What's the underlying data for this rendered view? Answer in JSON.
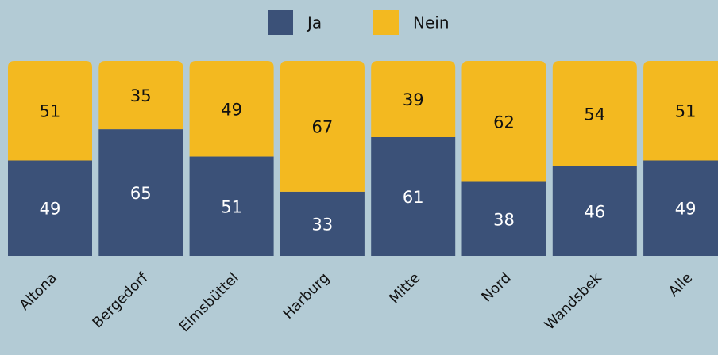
{
  "chart_data": {
    "type": "bar",
    "stacked": true,
    "categories": [
      "Altona",
      "Bergedorf",
      "Eimsbüttel",
      "Harburg",
      "Mitte",
      "Nord",
      "Wandsbek",
      "Alle"
    ],
    "series": [
      {
        "name": "Ja",
        "color": "#3b5178",
        "values": [
          49,
          65,
          51,
          33,
          61,
          38,
          46,
          49
        ]
      },
      {
        "name": "Nein",
        "color": "#f3b920",
        "values": [
          51,
          35,
          49,
          67,
          39,
          62,
          54,
          51
        ]
      }
    ],
    "ylim": [
      0,
      100
    ],
    "legend": "top"
  }
}
